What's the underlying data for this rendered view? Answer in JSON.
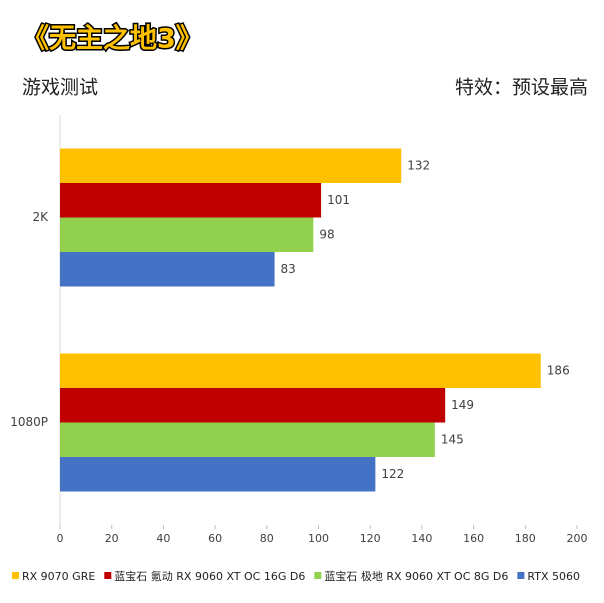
{
  "chart_data": {
    "type": "hbar",
    "title": "《无主之地3》",
    "subtitle": "游戏测试",
    "note": "特效：预设最高",
    "categories": [
      "2K",
      "1080P"
    ],
    "series": [
      {
        "name": "RX 9070 GRE",
        "color": "#ffc000",
        "values": [
          132,
          186
        ]
      },
      {
        "name": "蓝宝石 氪动 RX 9060 XT OC 16G D6",
        "color": "#c00000",
        "values": [
          101,
          149
        ]
      },
      {
        "name": "蓝宝石 极地 RX 9060 XT OC 8G D6",
        "color": "#92d050",
        "values": [
          98,
          145
        ]
      },
      {
        "name": "RTX 5060",
        "color": "#4472c4",
        "values": [
          83,
          122
        ]
      }
    ],
    "xlim": [
      0,
      200
    ],
    "xticks": [
      0,
      20,
      40,
      60,
      80,
      100,
      120,
      140,
      160,
      180,
      200
    ]
  }
}
